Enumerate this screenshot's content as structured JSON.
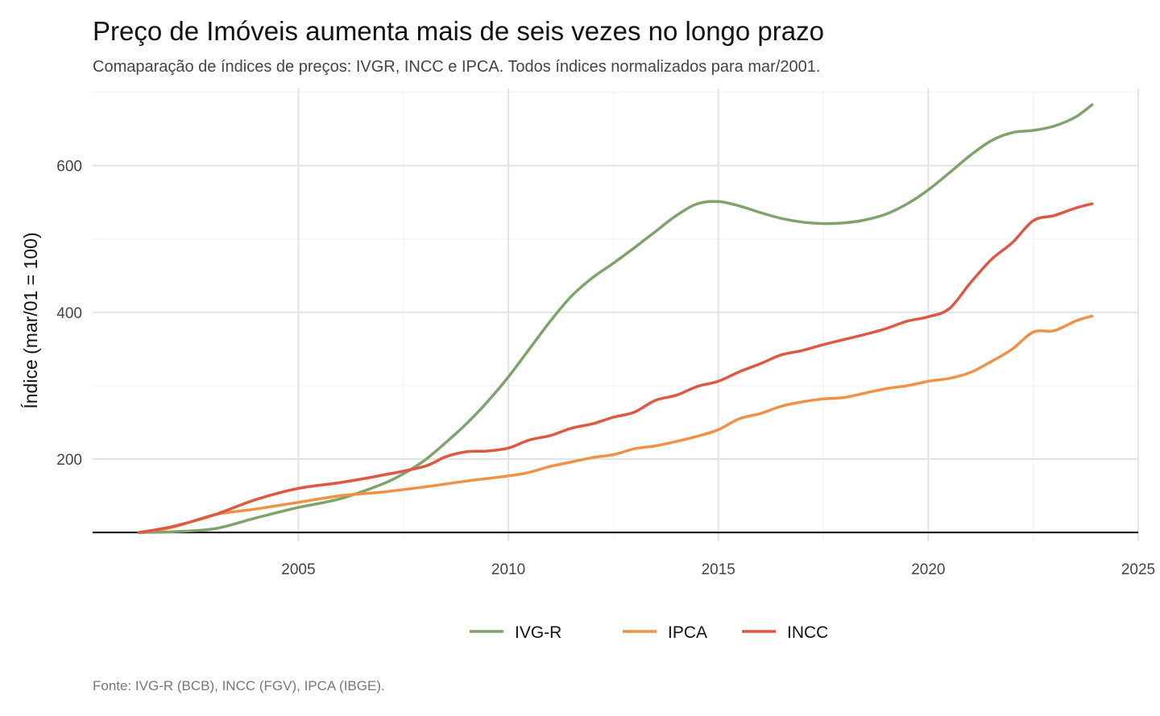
{
  "chart_data": {
    "type": "line",
    "title": "Preço de Imóveis aumenta mais de seis vezes no longo prazo",
    "subtitle": "Comaparação de índices de preços: IVGR, INCC e IPCA. Todos índices normalizados para mar/2001.",
    "caption": "Fonte: IVG-R (BCB), INCC (FGV), IPCA (IBGE).",
    "xlabel": "",
    "ylabel": "Índice (mar/01 = 100)",
    "xlim": [
      2000.1,
      2025
    ],
    "ylim": [
      88,
      705
    ],
    "x_ticks": [
      2005,
      2010,
      2015,
      2020,
      2025
    ],
    "x_tick_labels": [
      "2005",
      "2010",
      "2015",
      "2020",
      "2025"
    ],
    "y_ticks": [
      200,
      400,
      600
    ],
    "y_tick_labels": [
      "200",
      "400",
      "600"
    ],
    "reference_line": 100,
    "grid": true,
    "legend_position": "bottom",
    "series": [
      {
        "name": "IVG-R",
        "color": "#7ea46b",
        "x": [
          2001.2,
          2002,
          2003,
          2004,
          2005,
          2006,
          2007,
          2007.5,
          2008,
          2008.5,
          2009,
          2009.5,
          2010,
          2010.5,
          2011,
          2011.5,
          2012,
          2012.5,
          2013,
          2013.5,
          2014,
          2014.5,
          2015,
          2015.5,
          2016,
          2016.5,
          2017,
          2017.5,
          2018,
          2018.5,
          2019,
          2019.5,
          2020,
          2020.5,
          2021,
          2021.5,
          2022,
          2022.5,
          2023,
          2023.5,
          2023.9
        ],
        "values": [
          100,
          101,
          105,
          120,
          134,
          146,
          166,
          180,
          198,
          222,
          248,
          278,
          312,
          350,
          388,
          422,
          447,
          467,
          488,
          510,
          532,
          548,
          551,
          545,
          536,
          528,
          523,
          521,
          522,
          526,
          534,
          548,
          567,
          590,
          614,
          634,
          645,
          648,
          654,
          666,
          683
        ]
      },
      {
        "name": "IPCA",
        "color": "#ef9248",
        "x": [
          2001.2,
          2002,
          2003,
          2004,
          2005,
          2006,
          2007,
          2008,
          2009,
          2010,
          2010.5,
          2011,
          2011.5,
          2012,
          2012.5,
          2013,
          2013.5,
          2014,
          2014.5,
          2015,
          2015.5,
          2016,
          2016.5,
          2017,
          2017.5,
          2018,
          2018.5,
          2019,
          2019.5,
          2020,
          2020.5,
          2021,
          2021.5,
          2022,
          2022.5,
          2023,
          2023.5,
          2023.9
        ],
        "values": [
          100,
          107,
          124,
          132,
          141,
          150,
          155,
          162,
          170,
          177,
          182,
          190,
          196,
          202,
          206,
          214,
          218,
          224,
          231,
          240,
          255,
          262,
          272,
          278,
          282,
          284,
          290,
          296,
          300,
          306,
          310,
          318,
          333,
          350,
          373,
          375,
          388,
          395
        ]
      },
      {
        "name": "INCC",
        "color": "#dc5943",
        "x": [
          2001.2,
          2002,
          2003,
          2004,
          2005,
          2006,
          2007,
          2008,
          2008.5,
          2009,
          2009.5,
          2010,
          2010.5,
          2011,
          2011.5,
          2012,
          2012.5,
          2013,
          2013.5,
          2014,
          2014.5,
          2015,
          2015.5,
          2016,
          2016.5,
          2017,
          2017.5,
          2018,
          2018.5,
          2019,
          2019.5,
          2020,
          2020.5,
          2021,
          2021.5,
          2022,
          2022.5,
          2023,
          2023.5,
          2023.9
        ],
        "values": [
          100,
          108,
          124,
          145,
          160,
          168,
          178,
          190,
          203,
          210,
          211,
          215,
          226,
          232,
          242,
          248,
          257,
          264,
          280,
          287,
          299,
          306,
          319,
          330,
          342,
          348,
          356,
          363,
          370,
          378,
          388,
          394,
          405,
          440,
          472,
          495,
          525,
          532,
          542,
          548
        ]
      }
    ]
  }
}
